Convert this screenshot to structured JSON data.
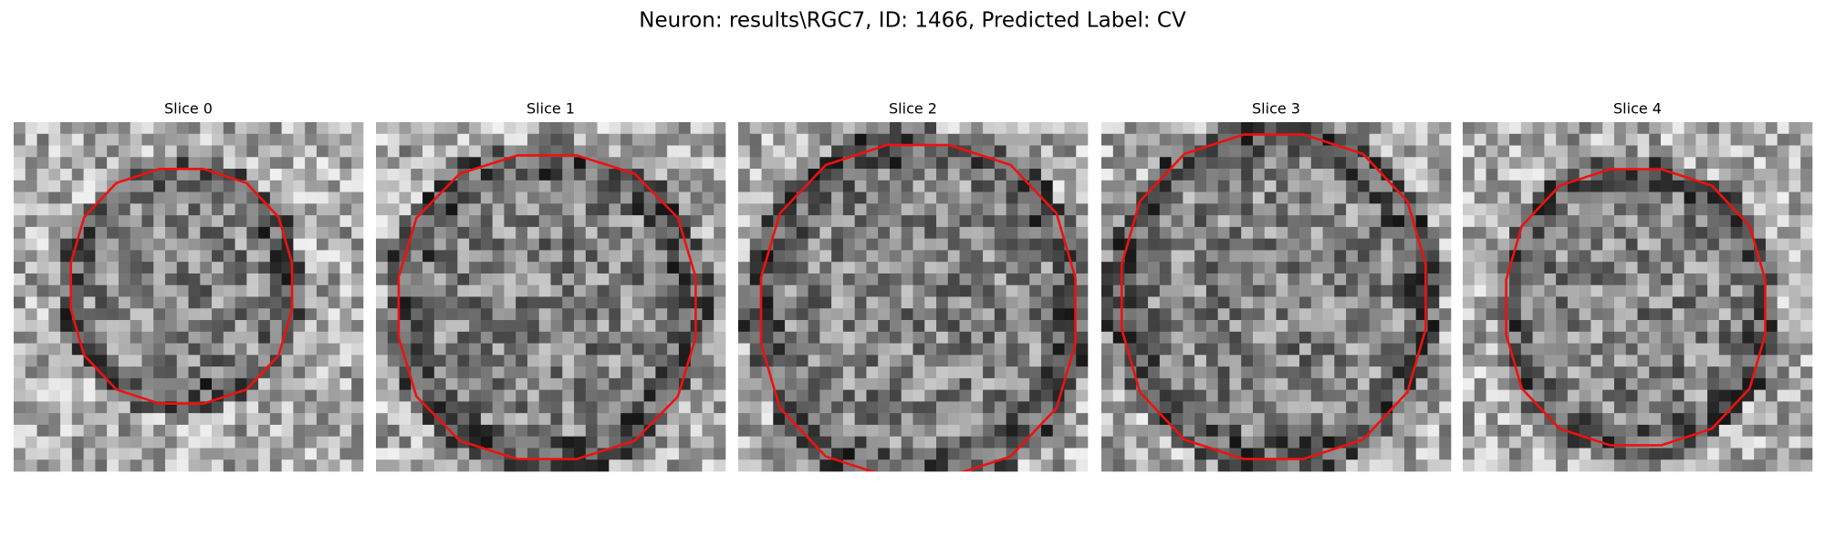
{
  "title": "Neuron: results\\RGC7, ID: 1466, Predicted Label: CV",
  "panels": [
    {
      "title": "Slice 0"
    },
    {
      "title": "Slice 1"
    },
    {
      "title": "Slice 2"
    },
    {
      "title": "Slice 3"
    },
    {
      "title": "Slice 4"
    }
  ]
}
